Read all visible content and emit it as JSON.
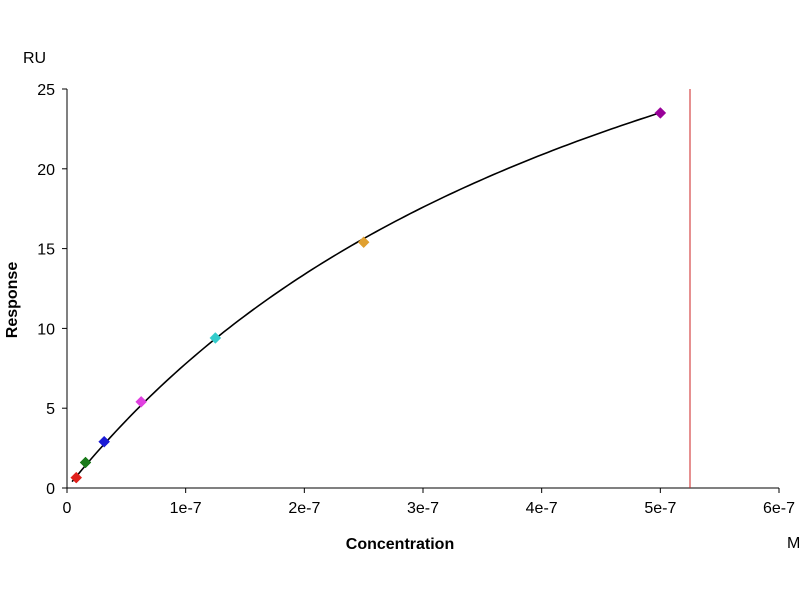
{
  "chart_data": {
    "type": "scatter",
    "title": "",
    "xlabel": "Concentration",
    "ylabel": "Response",
    "y_unit": "RU",
    "x_unit": "M",
    "xlim": [
      0,
      6e-07
    ],
    "ylim": [
      0,
      25
    ],
    "x_ticks": [
      0,
      1e-07,
      2e-07,
      3e-07,
      4e-07,
      5e-07,
      6e-07
    ],
    "x_tick_labels": [
      "0",
      "1e-7",
      "2e-7",
      "3e-7",
      "4e-7",
      "5e-7",
      "6e-7"
    ],
    "y_ticks": [
      0,
      5,
      10,
      15,
      20,
      25
    ],
    "y_tick_labels": [
      "0",
      "5",
      "10",
      "15",
      "20",
      "25"
    ],
    "grid": false,
    "series": [
      {
        "values": [
          {
            "x": 7.8e-09,
            "y": 0.65,
            "color": "#e0201b"
          },
          {
            "x": 1.56e-08,
            "y": 1.6,
            "color": "#1a7a1a"
          },
          {
            "x": 3.13e-08,
            "y": 2.9,
            "color": "#1a1ad6"
          },
          {
            "x": 6.25e-08,
            "y": 5.4,
            "color": "#e040e0"
          },
          {
            "x": 1.25e-07,
            "y": 9.4,
            "color": "#33cccc"
          },
          {
            "x": 2.5e-07,
            "y": 15.4,
            "color": "#e0a030"
          },
          {
            "x": 5e-07,
            "y": 23.5,
            "color": "#990099"
          }
        ]
      }
    ],
    "fit_curve": {
      "model": "one-site binding",
      "rmax": 47.5,
      "kd": 5.1e-07,
      "color": "#000000"
    },
    "reference_line": {
      "x": 5.25e-07,
      "color": "#cc2222"
    }
  }
}
